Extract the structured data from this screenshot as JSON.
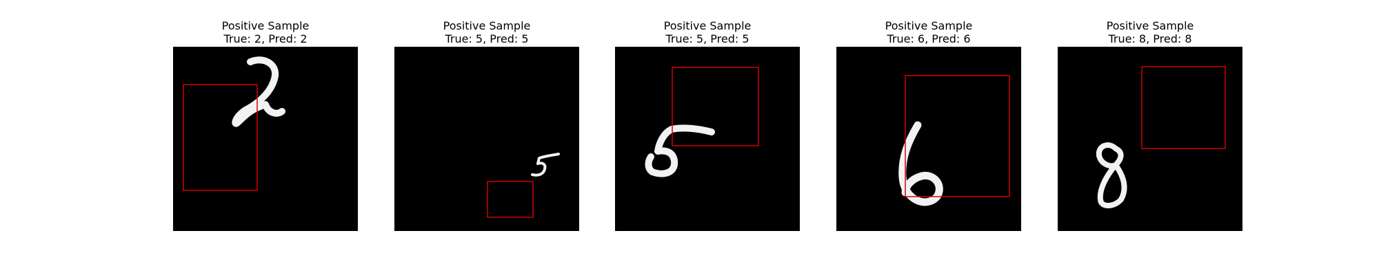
{
  "figure": {
    "samples": [
      {
        "title": "Positive Sample",
        "subtitle": "True: 2, Pred: 2",
        "digit": "2"
      },
      {
        "title": "Positive Sample",
        "subtitle": "True: 5, Pred: 5",
        "digit": "5"
      },
      {
        "title": "Positive Sample",
        "subtitle": "True: 5, Pred: 5",
        "digit": "5"
      },
      {
        "title": "Positive Sample",
        "subtitle": "True: 6, Pred: 6",
        "digit": "6"
      },
      {
        "title": "Positive Sample",
        "subtitle": "True: 8, Pred: 8",
        "digit": "8"
      }
    ],
    "colors": {
      "image_background": "#000000",
      "digit_stroke": "#f2f2f2",
      "box_stroke": "#d40000"
    }
  }
}
